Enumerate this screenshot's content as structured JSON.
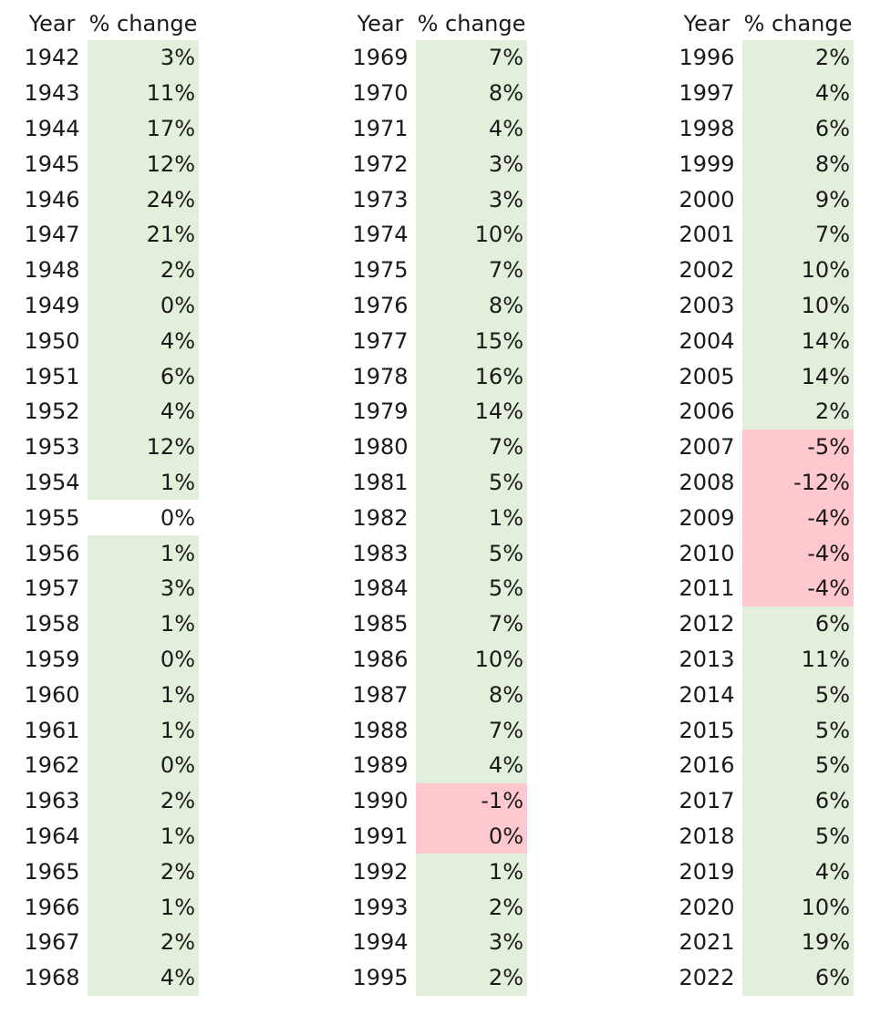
{
  "header": {
    "year_label": "Year",
    "change_label": "% change"
  },
  "colors": {
    "positive_fill": "#e2efda",
    "negative_fill": "#ffc7ce",
    "no_fill": "#ffffff"
  },
  "columns": [
    {
      "rows": [
        {
          "year": "1942",
          "change": "3%",
          "fill": "pos"
        },
        {
          "year": "1943",
          "change": "11%",
          "fill": "pos"
        },
        {
          "year": "1944",
          "change": "17%",
          "fill": "pos"
        },
        {
          "year": "1945",
          "change": "12%",
          "fill": "pos"
        },
        {
          "year": "1946",
          "change": "24%",
          "fill": "pos"
        },
        {
          "year": "1947",
          "change": "21%",
          "fill": "pos"
        },
        {
          "year": "1948",
          "change": "2%",
          "fill": "pos"
        },
        {
          "year": "1949",
          "change": "0%",
          "fill": "pos"
        },
        {
          "year": "1950",
          "change": "4%",
          "fill": "pos"
        },
        {
          "year": "1951",
          "change": "6%",
          "fill": "pos"
        },
        {
          "year": "1952",
          "change": "4%",
          "fill": "pos"
        },
        {
          "year": "1953",
          "change": "12%",
          "fill": "pos"
        },
        {
          "year": "1954",
          "change": "1%",
          "fill": "pos"
        },
        {
          "year": "1955",
          "change": "0%",
          "fill": "none"
        },
        {
          "year": "1956",
          "change": "1%",
          "fill": "pos"
        },
        {
          "year": "1957",
          "change": "3%",
          "fill": "pos"
        },
        {
          "year": "1958",
          "change": "1%",
          "fill": "pos"
        },
        {
          "year": "1959",
          "change": "0%",
          "fill": "pos"
        },
        {
          "year": "1960",
          "change": "1%",
          "fill": "pos"
        },
        {
          "year": "1961",
          "change": "1%",
          "fill": "pos"
        },
        {
          "year": "1962",
          "change": "0%",
          "fill": "pos"
        },
        {
          "year": "1963",
          "change": "2%",
          "fill": "pos"
        },
        {
          "year": "1964",
          "change": "1%",
          "fill": "pos"
        },
        {
          "year": "1965",
          "change": "2%",
          "fill": "pos"
        },
        {
          "year": "1966",
          "change": "1%",
          "fill": "pos"
        },
        {
          "year": "1967",
          "change": "2%",
          "fill": "pos"
        },
        {
          "year": "1968",
          "change": "4%",
          "fill": "pos"
        }
      ]
    },
    {
      "rows": [
        {
          "year": "1969",
          "change": "7%",
          "fill": "pos"
        },
        {
          "year": "1970",
          "change": "8%",
          "fill": "pos"
        },
        {
          "year": "1971",
          "change": "4%",
          "fill": "pos"
        },
        {
          "year": "1972",
          "change": "3%",
          "fill": "pos"
        },
        {
          "year": "1973",
          "change": "3%",
          "fill": "pos"
        },
        {
          "year": "1974",
          "change": "10%",
          "fill": "pos"
        },
        {
          "year": "1975",
          "change": "7%",
          "fill": "pos"
        },
        {
          "year": "1976",
          "change": "8%",
          "fill": "pos"
        },
        {
          "year": "1977",
          "change": "15%",
          "fill": "pos"
        },
        {
          "year": "1978",
          "change": "16%",
          "fill": "pos"
        },
        {
          "year": "1979",
          "change": "14%",
          "fill": "pos"
        },
        {
          "year": "1980",
          "change": "7%",
          "fill": "pos"
        },
        {
          "year": "1981",
          "change": "5%",
          "fill": "pos"
        },
        {
          "year": "1982",
          "change": "1%",
          "fill": "pos"
        },
        {
          "year": "1983",
          "change": "5%",
          "fill": "pos"
        },
        {
          "year": "1984",
          "change": "5%",
          "fill": "pos"
        },
        {
          "year": "1985",
          "change": "7%",
          "fill": "pos"
        },
        {
          "year": "1986",
          "change": "10%",
          "fill": "pos"
        },
        {
          "year": "1987",
          "change": "8%",
          "fill": "pos"
        },
        {
          "year": "1988",
          "change": "7%",
          "fill": "pos"
        },
        {
          "year": "1989",
          "change": "4%",
          "fill": "pos"
        },
        {
          "year": "1990",
          "change": "-1%",
          "fill": "neg"
        },
        {
          "year": "1991",
          "change": "0%",
          "fill": "neg"
        },
        {
          "year": "1992",
          "change": "1%",
          "fill": "pos"
        },
        {
          "year": "1993",
          "change": "2%",
          "fill": "pos"
        },
        {
          "year": "1994",
          "change": "3%",
          "fill": "pos"
        },
        {
          "year": "1995",
          "change": "2%",
          "fill": "pos"
        }
      ]
    },
    {
      "rows": [
        {
          "year": "1996",
          "change": "2%",
          "fill": "pos"
        },
        {
          "year": "1997",
          "change": "4%",
          "fill": "pos"
        },
        {
          "year": "1998",
          "change": "6%",
          "fill": "pos"
        },
        {
          "year": "1999",
          "change": "8%",
          "fill": "pos"
        },
        {
          "year": "2000",
          "change": "9%",
          "fill": "pos"
        },
        {
          "year": "2001",
          "change": "7%",
          "fill": "pos"
        },
        {
          "year": "2002",
          "change": "10%",
          "fill": "pos"
        },
        {
          "year": "2003",
          "change": "10%",
          "fill": "pos"
        },
        {
          "year": "2004",
          "change": "14%",
          "fill": "pos"
        },
        {
          "year": "2005",
          "change": "14%",
          "fill": "pos"
        },
        {
          "year": "2006",
          "change": "2%",
          "fill": "pos"
        },
        {
          "year": "2007",
          "change": "-5%",
          "fill": "neg"
        },
        {
          "year": "2008",
          "change": "-12%",
          "fill": "neg"
        },
        {
          "year": "2009",
          "change": "-4%",
          "fill": "neg"
        },
        {
          "year": "2010",
          "change": "-4%",
          "fill": "neg"
        },
        {
          "year": "2011",
          "change": "-4%",
          "fill": "neg"
        },
        {
          "year": "2012",
          "change": "6%",
          "fill": "pos"
        },
        {
          "year": "2013",
          "change": "11%",
          "fill": "pos"
        },
        {
          "year": "2014",
          "change": "5%",
          "fill": "pos"
        },
        {
          "year": "2015",
          "change": "5%",
          "fill": "pos"
        },
        {
          "year": "2016",
          "change": "5%",
          "fill": "pos"
        },
        {
          "year": "2017",
          "change": "6%",
          "fill": "pos"
        },
        {
          "year": "2018",
          "change": "5%",
          "fill": "pos"
        },
        {
          "year": "2019",
          "change": "4%",
          "fill": "pos"
        },
        {
          "year": "2020",
          "change": "10%",
          "fill": "pos"
        },
        {
          "year": "2021",
          "change": "19%",
          "fill": "pos"
        },
        {
          "year": "2022",
          "change": "6%",
          "fill": "pos"
        }
      ]
    }
  ]
}
